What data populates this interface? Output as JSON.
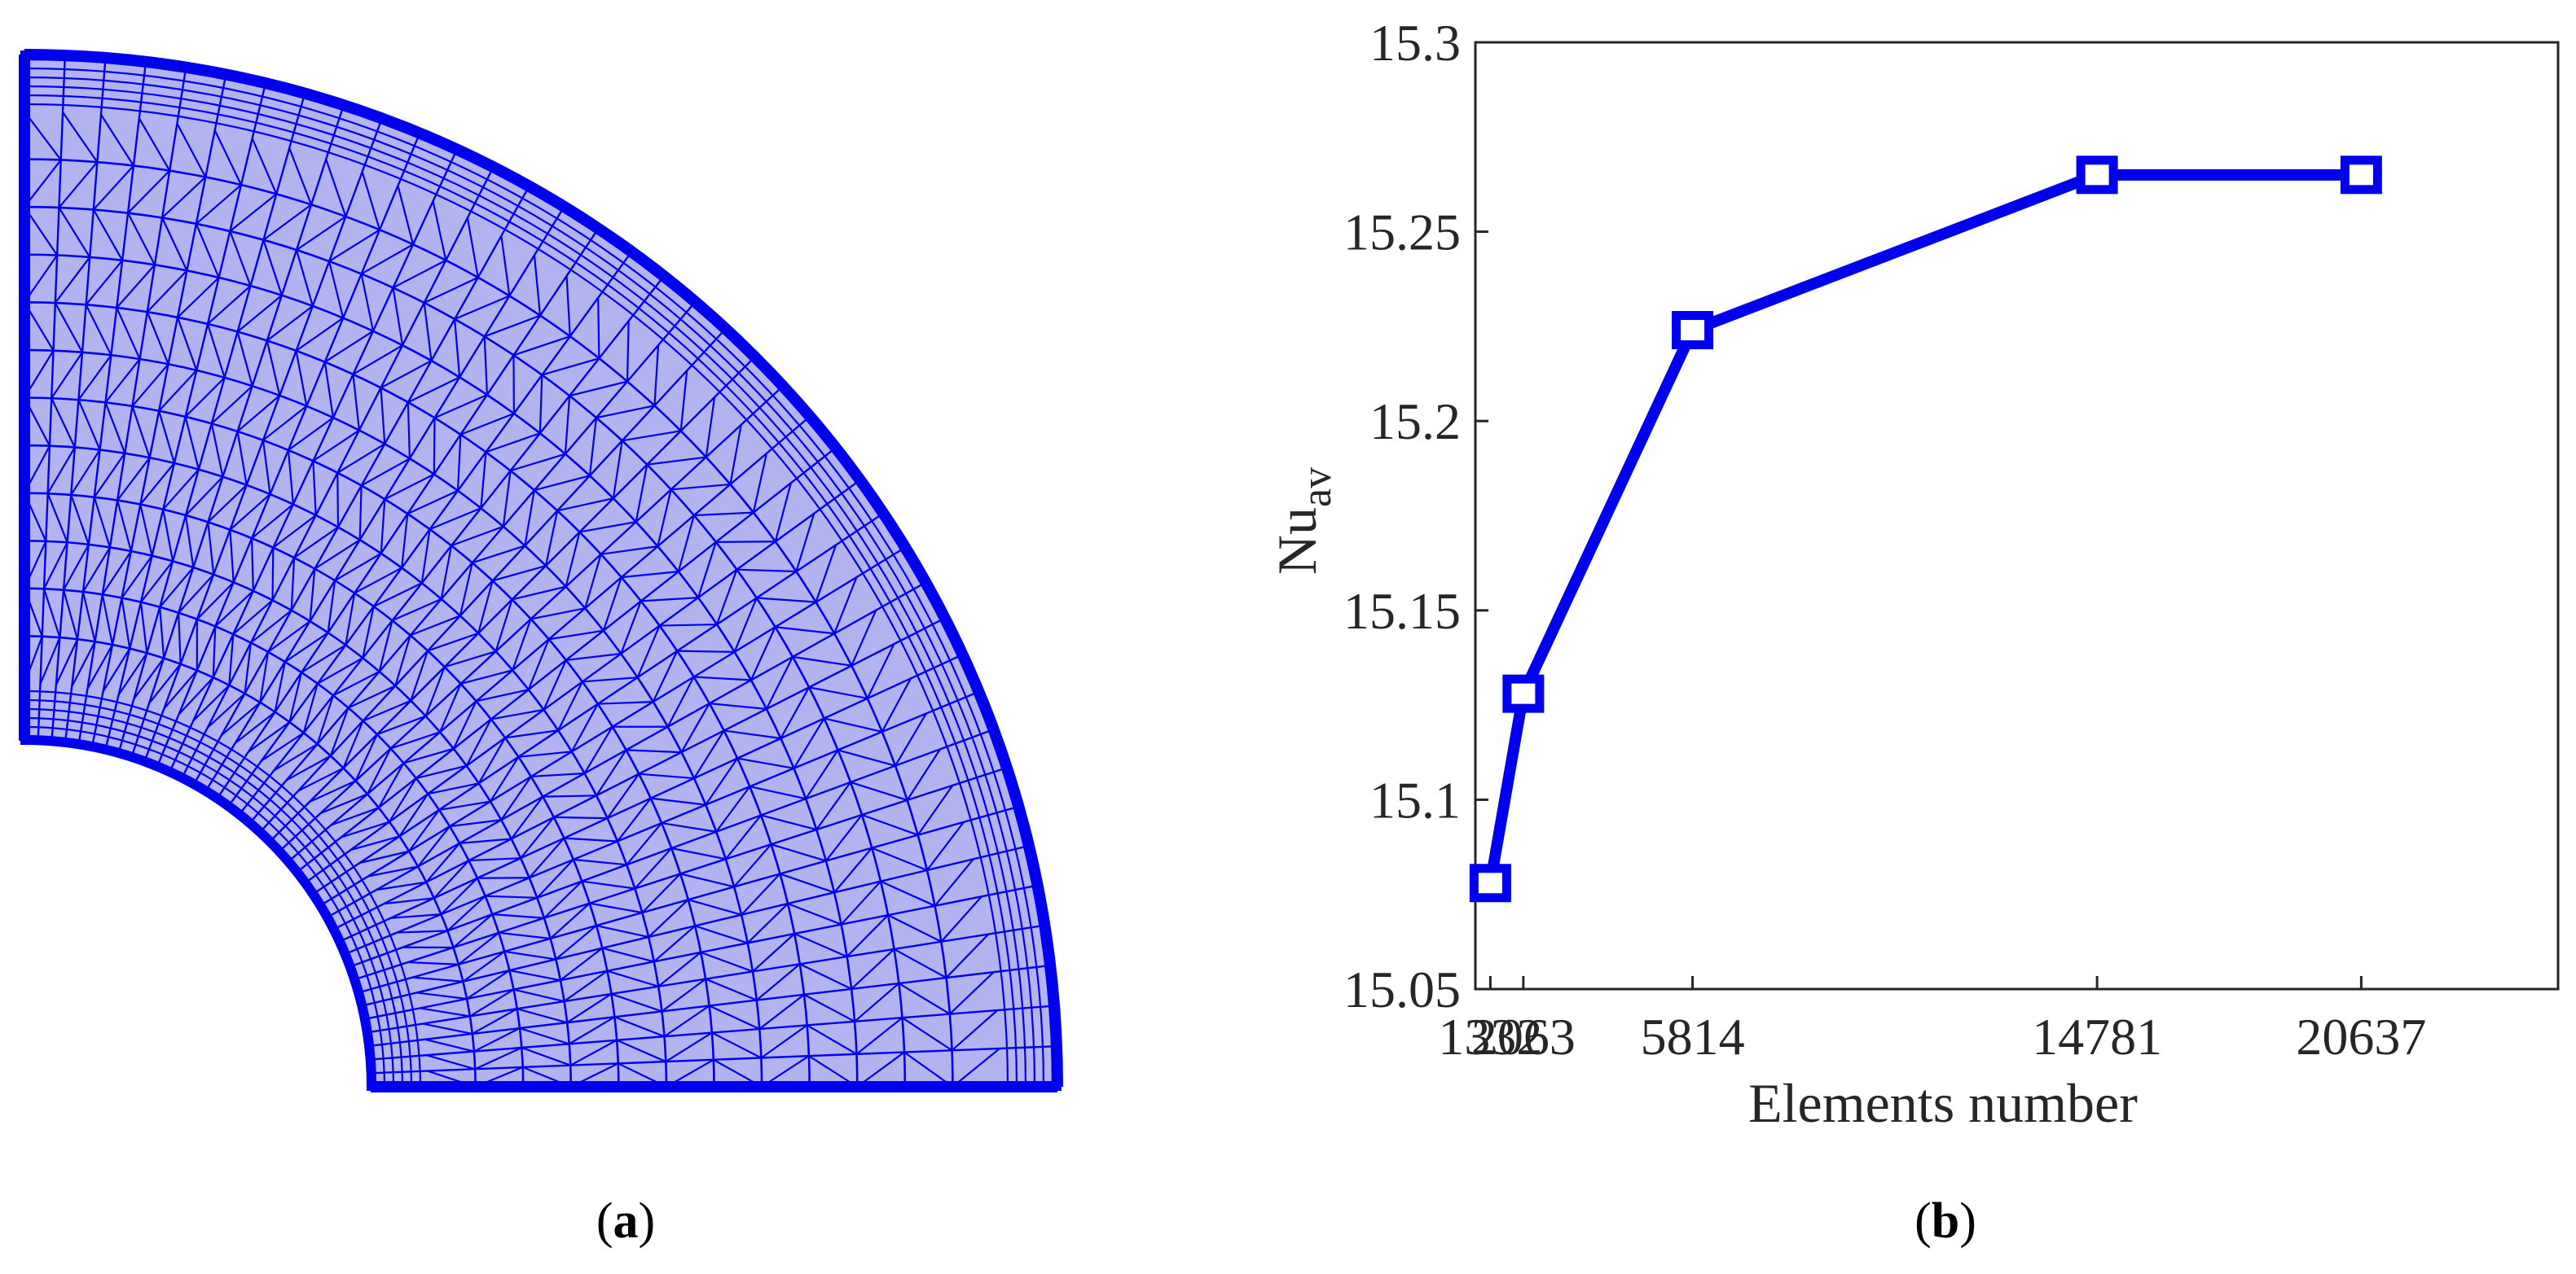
{
  "panel_a": {
    "label_open": "(",
    "label_letter": "a",
    "label_close": ")",
    "mesh_fill": "#b3b3f0",
    "mesh_stroke": "#0000ee"
  },
  "panel_b": {
    "label_open": "(",
    "label_letter": "b",
    "label_close": ")"
  },
  "chart_data": {
    "type": "line",
    "title": "",
    "xlabel": "Elements number",
    "ylabel_main": "Nu",
    "ylabel_sub": "av",
    "x_tick_labels": [
      "1332",
      "2063",
      "5814",
      "14781",
      "20637"
    ],
    "x_tick_positions": [
      1332,
      2063,
      5814,
      14781,
      20637
    ],
    "y_ticks": [
      15.05,
      15.1,
      15.15,
      15.2,
      15.25,
      15.3
    ],
    "y_tick_labels": [
      "15.05",
      "15.1",
      "15.15",
      "15.2",
      "15.25",
      "15.3"
    ],
    "xlim": [
      1000,
      25000
    ],
    "ylim": [
      15.05,
      15.3
    ],
    "grid": false,
    "series": [
      {
        "color": "#0000ee",
        "marker": "square",
        "x": [
          1332,
          2063,
          5814,
          14781,
          20637
        ],
        "y": [
          15.078,
          15.128,
          15.224,
          15.265,
          15.265
        ]
      }
    ]
  }
}
